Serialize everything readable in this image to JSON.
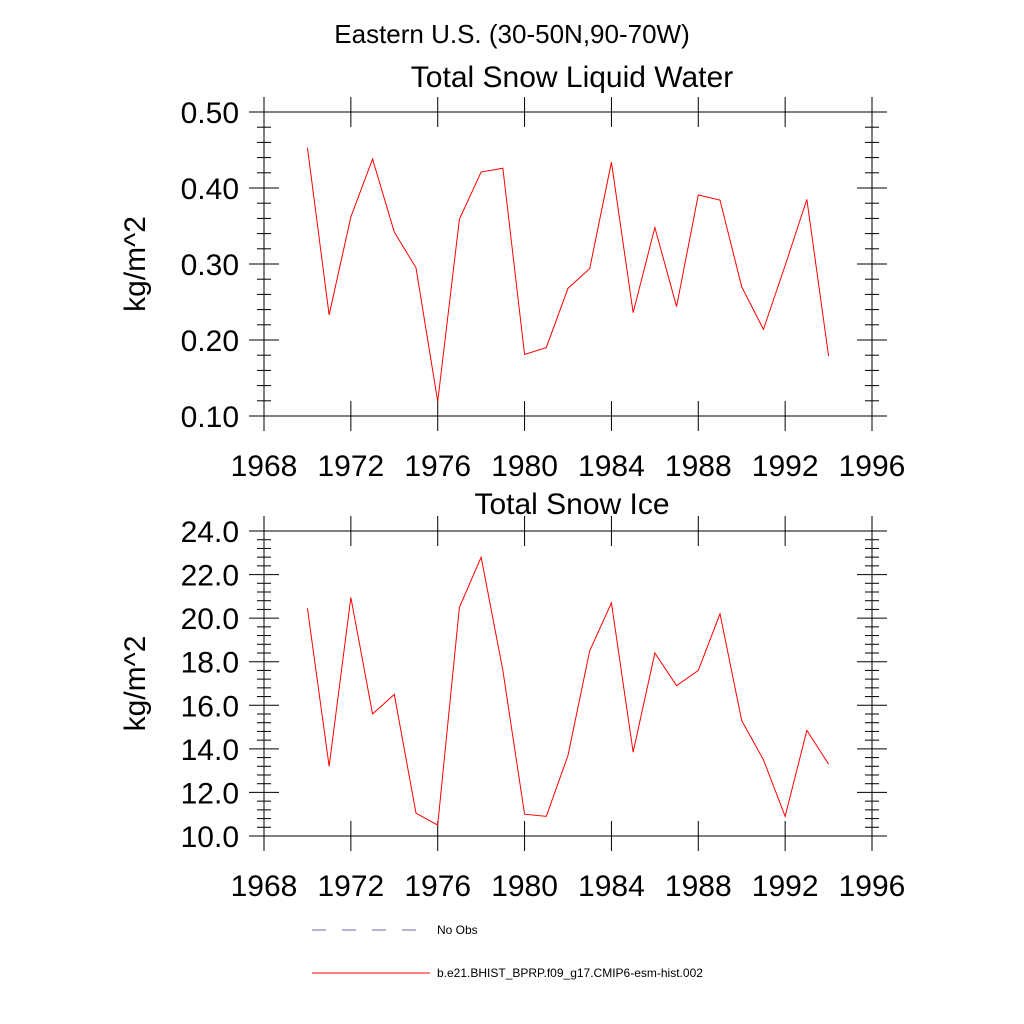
{
  "figure": {
    "suptitle": "Eastern U.S. (30-50N,90-70W)"
  },
  "chart_data": [
    {
      "type": "line",
      "title": "Total Snow Liquid Water",
      "xlabel": "",
      "ylabel": "kg/m^2",
      "xlim": [
        1968,
        1996
      ],
      "ylim": [
        0.1,
        0.5
      ],
      "xticks": [
        1968,
        1972,
        1976,
        1980,
        1984,
        1988,
        1992,
        1996
      ],
      "xtick_labels": [
        "1968",
        "1972",
        "1976",
        "1980",
        "1984",
        "1988",
        "1992",
        "1996"
      ],
      "yticks": [
        0.1,
        0.2,
        0.3,
        0.4,
        0.5
      ],
      "ytick_labels": [
        "0.10",
        "0.20",
        "0.30",
        "0.40",
        "0.50"
      ],
      "x": [
        1970,
        1971,
        1972,
        1973,
        1974,
        1975,
        1976,
        1977,
        1978,
        1979,
        1980,
        1981,
        1982,
        1983,
        1984,
        1985,
        1986,
        1987,
        1988,
        1989,
        1990,
        1991,
        1992,
        1993,
        1994
      ],
      "series": [
        {
          "name": "b.e21.BHIST_BPRP.f09_g17.CMIP6-esm-hist.002",
          "color": "#ff0000",
          "values": [
            0.453,
            0.233,
            0.362,
            0.438,
            0.342,
            0.295,
            0.119,
            0.359,
            0.421,
            0.426,
            0.181,
            0.19,
            0.268,
            0.294,
            0.434,
            0.236,
            0.348,
            0.244,
            0.391,
            0.384,
            0.27,
            0.214,
            0.298,
            0.385,
            0.179
          ]
        }
      ]
    },
    {
      "type": "line",
      "title": "Total Snow Ice",
      "xlabel": "",
      "ylabel": "kg/m^2",
      "xlim": [
        1968,
        1996
      ],
      "ylim": [
        10.0,
        24.0
      ],
      "xticks": [
        1968,
        1972,
        1976,
        1980,
        1984,
        1988,
        1992,
        1996
      ],
      "xtick_labels": [
        "1968",
        "1972",
        "1976",
        "1980",
        "1984",
        "1988",
        "1992",
        "1996"
      ],
      "yticks": [
        10.0,
        12.0,
        14.0,
        16.0,
        18.0,
        20.0,
        22.0,
        24.0
      ],
      "ytick_labels": [
        "10.0",
        "12.0",
        "14.0",
        "16.0",
        "18.0",
        "20.0",
        "22.0",
        "24.0"
      ],
      "x": [
        1970,
        1971,
        1972,
        1973,
        1974,
        1975,
        1976,
        1977,
        1978,
        1979,
        1980,
        1981,
        1982,
        1983,
        1984,
        1985,
        1986,
        1987,
        1988,
        1989,
        1990,
        1991,
        1992,
        1993,
        1994
      ],
      "series": [
        {
          "name": "b.e21.BHIST_BPRP.f09_g17.CMIP6-esm-hist.002",
          "color": "#ff0000",
          "values": [
            20.45,
            13.2,
            20.95,
            15.6,
            16.5,
            11.05,
            10.5,
            20.5,
            22.8,
            17.6,
            11.0,
            10.9,
            13.7,
            18.5,
            20.7,
            13.85,
            18.4,
            16.9,
            17.6,
            20.2,
            15.3,
            13.5,
            10.9,
            14.85,
            13.3
          ]
        }
      ]
    }
  ],
  "legend": {
    "items": [
      {
        "label": "No Obs",
        "color": "#6a6aa0",
        "style": "dashed"
      },
      {
        "label": "b.e21.BHIST_BPRP.f09_g17.CMIP6-esm-hist.002",
        "color": "#ff0000",
        "style": "solid"
      }
    ]
  }
}
